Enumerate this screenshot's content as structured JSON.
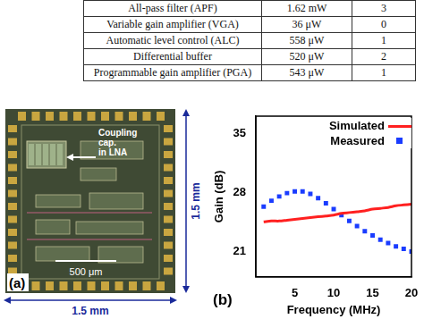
{
  "table": {
    "rows": [
      [
        "All-pass filter (APF)",
        "1.62 mW",
        "3"
      ],
      [
        "Variable gain amplifier (VGA)",
        "36 μW",
        "0"
      ],
      [
        "Automatic level control (ALC)",
        "558 μW",
        "1"
      ],
      [
        "Differential buffer",
        "520 μW",
        "2"
      ],
      [
        "Programmable gain amplifier (PGA)",
        "543 μW",
        "1"
      ]
    ]
  },
  "panel_a": {
    "label": "(a)",
    "annotation": [
      "Coupling",
      "cap.",
      "in LNA"
    ],
    "scale_bar": "500 μm",
    "width": "1.5 mm",
    "height": "1.5 mm"
  },
  "panel_b": {
    "label": "(b)"
  },
  "chart_data": {
    "type": "line",
    "x_label": "Frequency (MHz)",
    "y_label": "Gain (dB)",
    "x": [
      1,
      2,
      3,
      4,
      5,
      6,
      7,
      8,
      9,
      10,
      11,
      12,
      13,
      14,
      15,
      16,
      17,
      18,
      19,
      20
    ],
    "series": [
      {
        "name": "Simulated",
        "color": "#ff2020",
        "line_style": "solid",
        "marker": "none",
        "values": [
          24.5,
          24.6,
          24.6,
          24.7,
          24.8,
          24.9,
          25.0,
          25.1,
          25.2,
          25.3,
          25.5,
          25.6,
          25.7,
          25.8,
          26.0,
          26.1,
          26.2,
          26.4,
          26.5,
          26.6
        ]
      },
      {
        "name": "Measured",
        "color": "#1a3cff",
        "line_style": "none",
        "marker": "square",
        "values": [
          26.3,
          27.0,
          27.5,
          27.9,
          28.1,
          28.1,
          27.8,
          27.3,
          26.7,
          26.0,
          25.3,
          24.6,
          24.0,
          23.4,
          22.9,
          22.4,
          22.0,
          21.6,
          21.3,
          21.0
        ]
      }
    ],
    "xlim": [
      0,
      20
    ],
    "xticks": [
      5,
      10,
      15,
      20
    ],
    "ylim": [
      18,
      37
    ],
    "yticks": [
      21,
      28,
      35
    ],
    "grid": false,
    "legend": "upper right"
  }
}
